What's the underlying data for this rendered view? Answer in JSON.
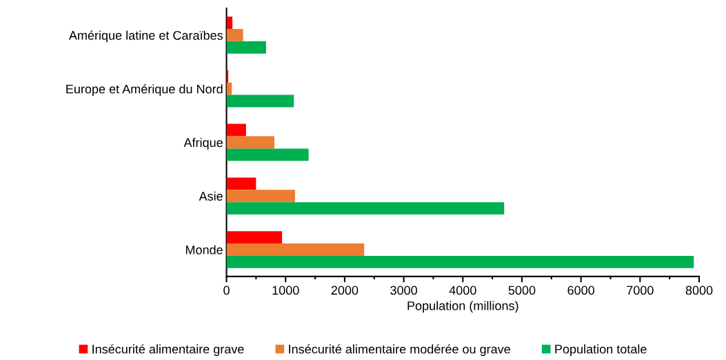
{
  "chart_data": {
    "type": "bar",
    "orientation": "horizontal",
    "xlabel": "Population (millions)",
    "categories": [
      "Amérique latine et Caraïbes",
      "Europe et Amérique du Nord",
      "Afrique",
      "Asie",
      "Monde"
    ],
    "series": [
      {
        "name": "Insécurité alimentaire grave",
        "color": "#ff0000",
        "values": [
          100,
          30,
          330,
          500,
          940
        ]
      },
      {
        "name": "Insécurité alimentaire modérée ou grave",
        "color": "#ed7d31",
        "values": [
          280,
          90,
          810,
          1160,
          2330
        ]
      },
      {
        "name": "Population totale",
        "color": "#00b050",
        "values": [
          670,
          1140,
          1390,
          4700,
          7910
        ]
      }
    ],
    "xlim": [
      0,
      8000
    ],
    "xticks": [
      0,
      1000,
      2000,
      3000,
      4000,
      5000,
      6000,
      7000,
      8000
    ],
    "grid": false,
    "legend": "bottom"
  }
}
